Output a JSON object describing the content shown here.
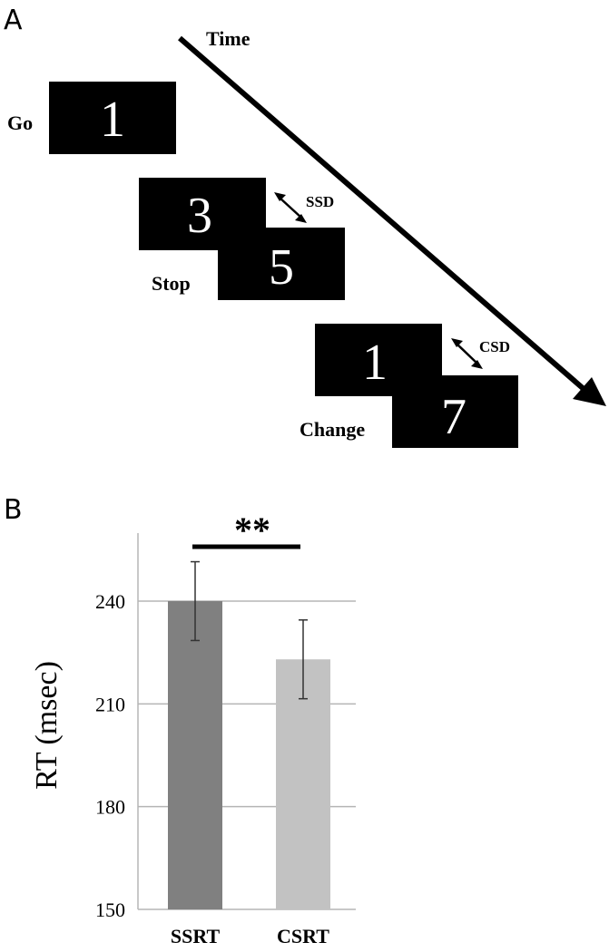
{
  "panel_a": {
    "letter": "A",
    "time_label": "Time",
    "trials": {
      "go": {
        "label": "Go",
        "digit": "1"
      },
      "stop": {
        "label": "Stop",
        "first_digit": "3",
        "second_digit": "5",
        "delay_label": "SSD"
      },
      "change": {
        "label": "Change",
        "first_digit": "1",
        "second_digit": "7",
        "delay_label": "CSD"
      }
    }
  },
  "panel_b": {
    "letter": "B",
    "significance": "**"
  },
  "chart_data": {
    "type": "bar",
    "categories": [
      "SSRT",
      "CSRT"
    ],
    "values": [
      240,
      223
    ],
    "error": [
      11.5,
      11.5
    ],
    "colors": [
      "#808080",
      "#c2c2c2"
    ],
    "ylabel": "RT (msec)",
    "ylim": [
      150,
      255
    ],
    "yticks": [
      150,
      180,
      210,
      240
    ],
    "grid": true
  }
}
